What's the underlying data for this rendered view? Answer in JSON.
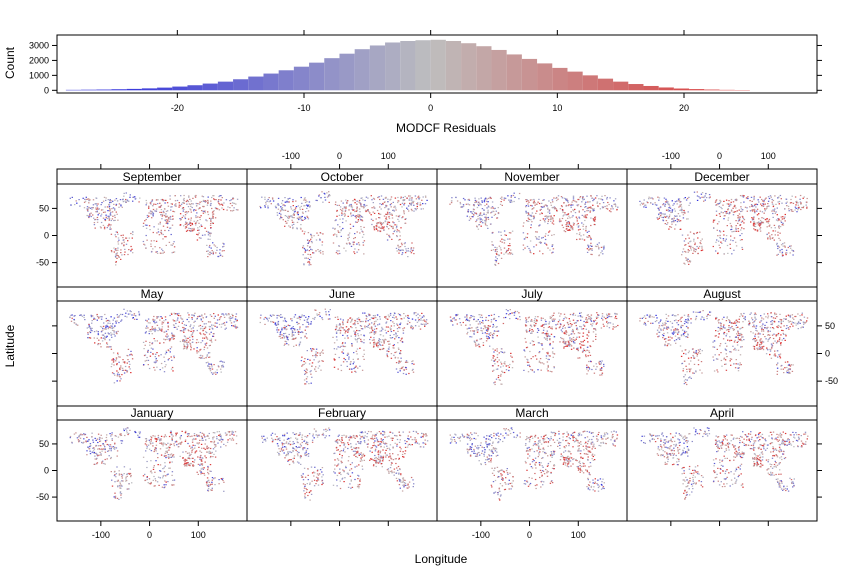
{
  "chart_data": [
    {
      "type": "bar",
      "panel": "histogram",
      "xlabel": "MODCF Residuals",
      "ylabel": "Count",
      "x_ticks": [
        -20,
        -10,
        0,
        10,
        20
      ],
      "y_ticks": [
        0,
        1000,
        2000,
        3000
      ],
      "xlim": [
        -29.5,
        30.5
      ],
      "ylim": [
        -180,
        3700
      ],
      "bin_width": 1.2,
      "bin_starts": [
        -28.8,
        -27.6,
        -26.4,
        -25.2,
        -24.0,
        -22.8,
        -21.6,
        -20.4,
        -19.2,
        -18.0,
        -16.8,
        -15.6,
        -14.4,
        -13.2,
        -12.0,
        -10.8,
        -9.6,
        -8.4,
        -7.2,
        -6.0,
        -4.8,
        -3.6,
        -2.4,
        -1.2,
        0.0,
        1.2,
        2.4,
        3.6,
        4.8,
        6.0,
        7.2,
        8.4,
        9.6,
        10.8,
        12.0,
        13.2,
        14.4,
        15.6,
        16.8,
        18.0,
        19.2,
        20.4,
        21.6,
        22.8,
        24.0
      ],
      "values": [
        30,
        40,
        50,
        70,
        95,
        130,
        180,
        250,
        340,
        450,
        580,
        740,
        920,
        1120,
        1340,
        1580,
        1850,
        2150,
        2450,
        2750,
        3000,
        3200,
        3300,
        3350,
        3380,
        3300,
        3150,
        2950,
        2700,
        2400,
        2100,
        1800,
        1500,
        1250,
        1000,
        780,
        580,
        420,
        290,
        190,
        120,
        80,
        50,
        30,
        20
      ],
      "color_scale": {
        "low": "#3333dd",
        "mid": "#bebebe",
        "high": "#dd3333"
      }
    },
    {
      "type": "scatter",
      "panel": "maps",
      "xlabel": "Longitude",
      "ylabel": "Latitude",
      "x_ticks": [
        -100,
        0,
        100
      ],
      "y_ticks": [
        -50,
        0,
        50
      ],
      "xlim": [
        -190,
        200
      ],
      "ylim": [
        -95,
        95
      ],
      "panels": [
        {
          "month": "September",
          "warm": 0.45,
          "cool": 0.35
        },
        {
          "month": "October",
          "warm": 0.45,
          "cool": 0.4
        },
        {
          "month": "November",
          "warm": 0.5,
          "cool": 0.35
        },
        {
          "month": "December",
          "warm": 0.7,
          "cool": 0.3
        },
        {
          "month": "May",
          "warm": 0.5,
          "cool": 0.55
        },
        {
          "month": "June",
          "warm": 0.55,
          "cool": 0.7
        },
        {
          "month": "July",
          "warm": 0.7,
          "cool": 0.6
        },
        {
          "month": "August",
          "warm": 0.6,
          "cool": 0.45
        },
        {
          "month": "January",
          "warm": 0.55,
          "cool": 0.4
        },
        {
          "month": "February",
          "warm": 0.5,
          "cool": 0.4
        },
        {
          "month": "March",
          "warm": 0.45,
          "cool": 0.45
        },
        {
          "month": "April",
          "warm": 0.5,
          "cool": 0.4
        }
      ]
    }
  ]
}
